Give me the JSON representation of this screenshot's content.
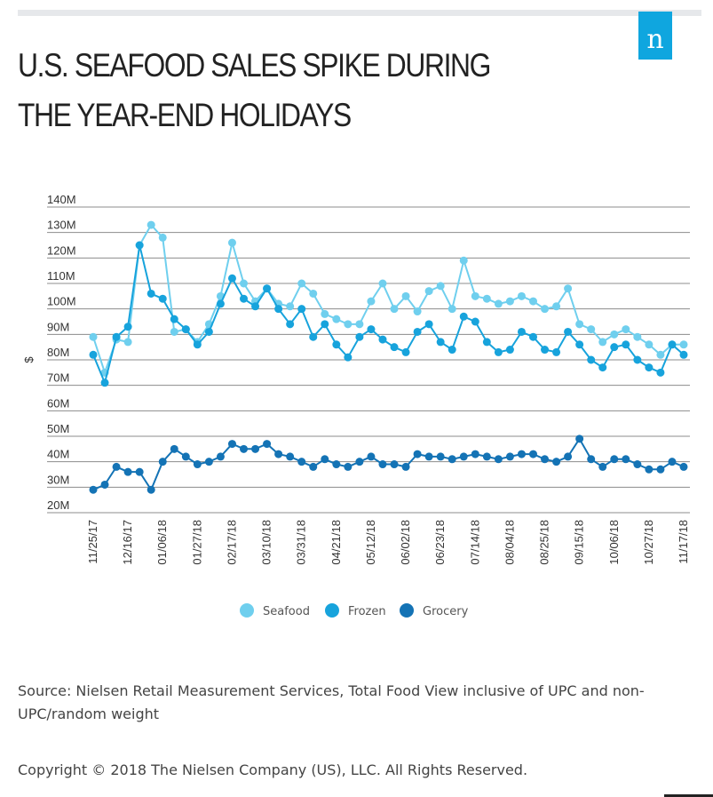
{
  "header": {
    "title": "U.S. SEAFOOD SALES SPIKE DURING THE YEAR-END HOLIDAYS",
    "logo_letter": "n"
  },
  "footer": {
    "source": "Source: Nielsen Retail Measurement Services, Total Food View inclusive of UPC and non-UPC/random weight",
    "copyright": "Copyright © 2018 The Nielsen Company (US), LLC. All Rights Reserved."
  },
  "colors": {
    "seafood": "#6fcfee",
    "frozen": "#17a3dc",
    "grocery": "#1473b5",
    "grid": "#8c8c8c",
    "logo_bg": "#0fa6df"
  },
  "chart_data": {
    "type": "line",
    "title": "U.S. SEAFOOD SALES SPIKE DURING THE YEAR-END HOLIDAYS",
    "xlabel": "",
    "ylabel": "$",
    "ylim": [
      20,
      140
    ],
    "yticks": [
      20,
      30,
      40,
      50,
      60,
      70,
      80,
      90,
      100,
      110,
      120,
      130,
      140
    ],
    "ytick_labels": [
      "20M",
      "30M",
      "40M",
      "50M",
      "60M",
      "70M",
      "80M",
      "90M",
      "100M",
      "110M",
      "120M",
      "130M",
      "140M"
    ],
    "grid": true,
    "legend": "bottom-center",
    "x_tick_labels": [
      {
        "index": 0,
        "label": "11/25/17"
      },
      {
        "index": 3,
        "label": "12/16/17"
      },
      {
        "index": 6,
        "label": "01/06/18"
      },
      {
        "index": 9,
        "label": "01/27/18"
      },
      {
        "index": 12,
        "label": "02/17/18"
      },
      {
        "index": 15,
        "label": "03/10/18"
      },
      {
        "index": 18,
        "label": "03/31/18"
      },
      {
        "index": 21,
        "label": "04/21/18"
      },
      {
        "index": 24,
        "label": "05/12/18"
      },
      {
        "index": 27,
        "label": "06/02/18"
      },
      {
        "index": 30,
        "label": "06/23/18"
      },
      {
        "index": 33,
        "label": "07/14/18"
      },
      {
        "index": 36,
        "label": "08/04/18"
      },
      {
        "index": 39,
        "label": "08/25/18"
      },
      {
        "index": 42,
        "label": "09/15/18"
      },
      {
        "index": 45,
        "label": "10/06/18"
      },
      {
        "index": 48,
        "label": "10/27/18"
      },
      {
        "index": 51,
        "label": "11/17/18"
      }
    ],
    "series": [
      {
        "name": "Seafood",
        "values": [
          89,
          75,
          88,
          87,
          125,
          133,
          128,
          91,
          92,
          87,
          94,
          105,
          126,
          110,
          103,
          108,
          102,
          101,
          110,
          106,
          98,
          96,
          94,
          94,
          103,
          110,
          100,
          105,
          99,
          107,
          109,
          100,
          119,
          105,
          104,
          102,
          103,
          105,
          103,
          100,
          101,
          108,
          94,
          92,
          87,
          90,
          92,
          89,
          86,
          82,
          86,
          86
        ]
      },
      {
        "name": "Frozen",
        "values": [
          82,
          71,
          89,
          93,
          125,
          106,
          104,
          96,
          92,
          86,
          91,
          102,
          112,
          104,
          101,
          108,
          100,
          94,
          100,
          89,
          94,
          86,
          81,
          89,
          92,
          88,
          85,
          83,
          91,
          94,
          87,
          84,
          97,
          95,
          87,
          83,
          84,
          91,
          89,
          84,
          83,
          91,
          86,
          80,
          77,
          85,
          86,
          80,
          77,
          75,
          86,
          82
        ]
      },
      {
        "name": "Grocery",
        "values": [
          29,
          31,
          38,
          36,
          36,
          29,
          40,
          45,
          42,
          39,
          40,
          42,
          47,
          45,
          45,
          47,
          43,
          42,
          40,
          38,
          41,
          39,
          38,
          40,
          42,
          39,
          39,
          38,
          43,
          42,
          42,
          41,
          42,
          43,
          42,
          41,
          42,
          43,
          43,
          41,
          40,
          42,
          49,
          41,
          38,
          41,
          41,
          39,
          37,
          37,
          40,
          38
        ]
      }
    ]
  }
}
